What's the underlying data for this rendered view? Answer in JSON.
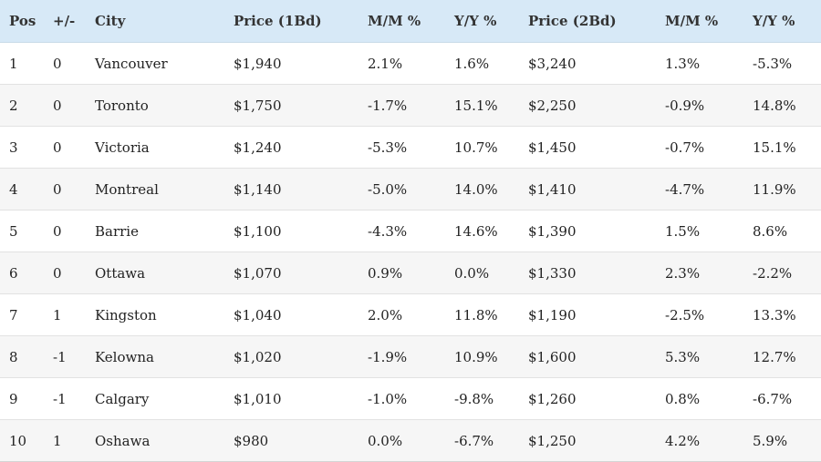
{
  "table": {
    "headers": [
      "Pos",
      "+/-",
      "City",
      "Price (1Bd)",
      "M/M %",
      "Y/Y %",
      "Price (2Bd)",
      "M/M %",
      "Y/Y %"
    ],
    "rows": [
      [
        "1",
        "0",
        "Vancouver",
        "$1,940",
        "2.1%",
        "1.6%",
        "$3,240",
        "1.3%",
        "-5.3%"
      ],
      [
        "2",
        "0",
        "Toronto",
        "$1,750",
        "-1.7%",
        "15.1%",
        "$2,250",
        "-0.9%",
        "14.8%"
      ],
      [
        "3",
        "0",
        "Victoria",
        "$1,240",
        "-5.3%",
        "10.7%",
        "$1,450",
        "-0.7%",
        "15.1%"
      ],
      [
        "4",
        "0",
        "Montreal",
        "$1,140",
        "-5.0%",
        "14.0%",
        "$1,410",
        "-4.7%",
        "11.9%"
      ],
      [
        "5",
        "0",
        "Barrie",
        "$1,100",
        "-4.3%",
        "14.6%",
        "$1,390",
        "1.5%",
        "8.6%"
      ],
      [
        "6",
        "0",
        "Ottawa",
        "$1,070",
        "0.9%",
        "0.0%",
        "$1,330",
        "2.3%",
        "-2.2%"
      ],
      [
        "7",
        "1",
        "Kingston",
        "$1,040",
        "2.0%",
        "11.8%",
        "$1,190",
        "-2.5%",
        "13.3%"
      ],
      [
        "8",
        "-1",
        "Kelowna",
        "$1,020",
        "-1.9%",
        "10.9%",
        "$1,600",
        "5.3%",
        "12.7%"
      ],
      [
        "9",
        "-1",
        "Calgary",
        "$1,010",
        "-1.0%",
        "-9.8%",
        "$1,260",
        "0.8%",
        "-6.7%"
      ],
      [
        "10",
        "1",
        "Oshawa",
        "$980",
        "0.0%",
        "-6.7%",
        "$1,250",
        "4.2%",
        "5.9%"
      ]
    ]
  }
}
